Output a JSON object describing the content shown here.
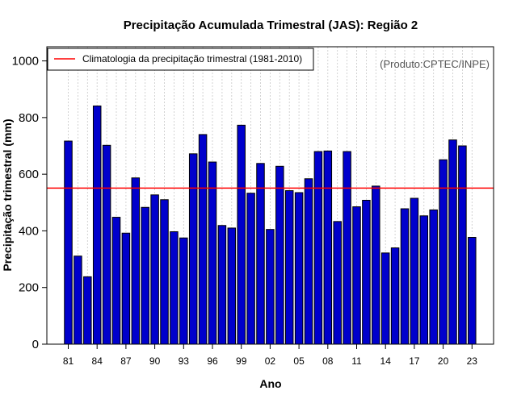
{
  "chart_data": {
    "type": "bar",
    "title": "Precipitação Acumulada Trimestral (JAS): Região 2",
    "xlabel": "Ano",
    "ylabel": "Precipitação trimestral (mm)",
    "ylim": [
      0,
      1050
    ],
    "yticks": [
      0,
      200,
      400,
      600,
      800,
      1000
    ],
    "categories": [
      "81",
      "82",
      "83",
      "84",
      "85",
      "86",
      "87",
      "88",
      "89",
      "90",
      "91",
      "92",
      "93",
      "94",
      "95",
      "96",
      "97",
      "98",
      "99",
      "00",
      "01",
      "02",
      "03",
      "04",
      "05",
      "06",
      "07",
      "08",
      "09",
      "10",
      "11",
      "12",
      "13",
      "14",
      "15",
      "16",
      "17",
      "18",
      "19",
      "20",
      "21",
      "22",
      "23"
    ],
    "xtick_labels": [
      "81",
      "84",
      "87",
      "90",
      "93",
      "96",
      "99",
      "02",
      "05",
      "08",
      "11",
      "14",
      "17",
      "20",
      "23"
    ],
    "values": [
      717,
      311,
      238,
      841,
      702,
      448,
      392,
      587,
      483,
      527,
      510,
      397,
      375,
      672,
      740,
      643,
      419,
      410,
      773,
      533,
      638,
      405,
      628,
      542,
      535,
      584,
      680,
      682,
      433,
      680,
      485,
      508,
      558,
      322,
      340,
      478,
      515,
      453,
      474,
      651,
      721,
      700,
      377
    ],
    "bar_color": "#0000cc",
    "climatology_value": 551,
    "climatology_color": "#ff0000",
    "legend": {
      "label": "Climatologia da precipitação trimestral (1981-2010)",
      "position": "top-left"
    },
    "source": "(Produto:CPTEC/INPE)",
    "grid": "vertical-dotted"
  }
}
